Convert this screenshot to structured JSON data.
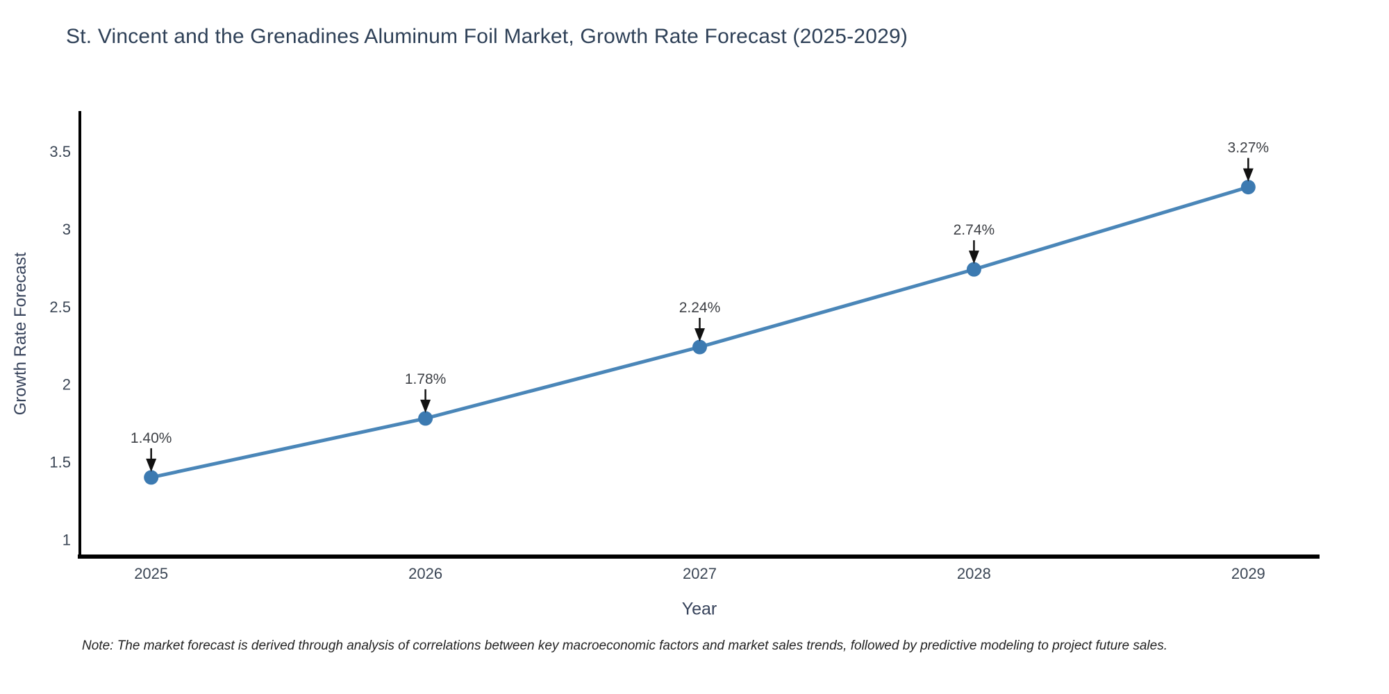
{
  "chart_data": {
    "type": "line",
    "title": "St. Vincent and the Grenadines Aluminum Foil Market, Growth Rate Forecast (2025-2029)",
    "xlabel": "Year",
    "ylabel": "Growth Rate Forecast",
    "x": [
      2025,
      2026,
      2027,
      2028,
      2029
    ],
    "xtick_labels": [
      "2025",
      "2026",
      "2027",
      "2028",
      "2029"
    ],
    "y": [
      1.4,
      1.78,
      2.24,
      2.74,
      3.27
    ],
    "point_labels": [
      "1.40%",
      "1.78%",
      "2.24%",
      "2.74%",
      "3.27%"
    ],
    "ytick_values": [
      1,
      1.5,
      2,
      2.5,
      3,
      3.5
    ],
    "ytick_labels": [
      "1",
      "1.5",
      "2",
      "2.5",
      "3",
      "3.5"
    ],
    "ylim": [
      0.89,
      3.76
    ],
    "xlim": [
      2024.74,
      2029.26
    ],
    "grid": false,
    "legend": null,
    "footnote": "Note: The market forecast is derived through analysis of correlations between key macroeconomic factors and market sales trends, followed by predictive modeling to project future sales.",
    "colors": {
      "background": "#ffffff",
      "line": "#4a86b8",
      "marker": "#3c7ab1",
      "axis": "#000000",
      "tick_label": "#3a4554",
      "title": "#2e4057",
      "axis_title": "#36425a",
      "annotation_text": "#3c3f44",
      "annotation_arrow": "#111111",
      "note": "#222222"
    }
  }
}
